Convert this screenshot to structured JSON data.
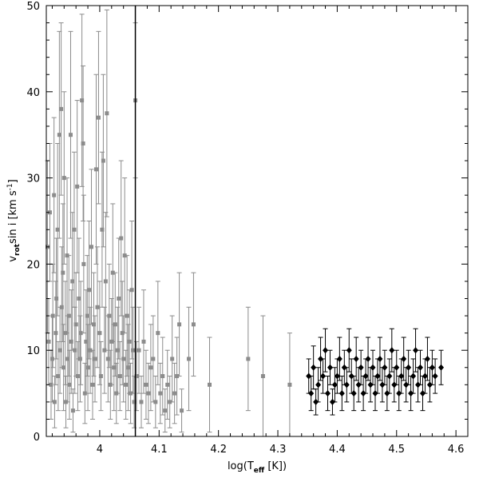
{
  "chart_data": {
    "type": "scatter",
    "title": "",
    "xlabel": "log(T_eff [K])",
    "ylabel": "v_rot sin i [km s^-1]",
    "xlabel_parts": {
      "pre": "log(T",
      "sub": "eff",
      "post": " [K])"
    },
    "ylabel_parts": {
      "pre": "v",
      "sub": "rot",
      "mid": "sin i [km s",
      "sup": "-1",
      "post": "]"
    },
    "xlim": [
      3.91,
      4.62
    ],
    "ylim": [
      0,
      50
    ],
    "xticks": [
      4.0,
      4.1,
      4.2,
      4.3,
      4.4,
      4.5,
      4.6
    ],
    "xtick_labels": [
      "4",
      "4.1",
      "4.2",
      "4.3",
      "4.4",
      "4.5",
      "4.6"
    ],
    "yticks": [
      0,
      10,
      20,
      30,
      40,
      50
    ],
    "ytick_labels": [
      "0",
      "10",
      "20",
      "30",
      "40",
      "50"
    ],
    "vline_x": 4.06,
    "grid": false,
    "colors": {
      "series_a": "#8c8c8c",
      "series_b": "#000000"
    },
    "series": [
      {
        "marker": "square",
        "color": "#8c8c8c",
        "points": [
          [
            3.912,
            22.0,
            10.0
          ],
          [
            3.914,
            11.0,
            5.0
          ],
          [
            3.916,
            26.0,
            8.0
          ],
          [
            3.918,
            6.0,
            4.0
          ],
          [
            3.92,
            9.0,
            5.0
          ],
          [
            3.921,
            14.0,
            6.0
          ],
          [
            3.923,
            28.0,
            9.0
          ],
          [
            3.924,
            4.0,
            3.0
          ],
          [
            3.926,
            12.0,
            6.0
          ],
          [
            3.927,
            16.0,
            7.0
          ],
          [
            3.929,
            24.0,
            10.0
          ],
          [
            3.93,
            7.0,
            4.0
          ],
          [
            3.932,
            35.0,
            12.0
          ],
          [
            3.933,
            10.0,
            5.0
          ],
          [
            3.935,
            38.0,
            10.0
          ],
          [
            3.936,
            15.0,
            7.0
          ],
          [
            3.938,
            19.0,
            8.0
          ],
          [
            3.939,
            8.0,
            5.0
          ],
          [
            3.94,
            30.0,
            10.0
          ],
          [
            3.942,
            12.0,
            6.0
          ],
          [
            3.943,
            4.0,
            3.0
          ],
          [
            3.945,
            21.0,
            9.0
          ],
          [
            3.946,
            9.0,
            5.0
          ],
          [
            3.948,
            14.0,
            7.0
          ],
          [
            3.949,
            6.0,
            4.0
          ],
          [
            3.951,
            35.0,
            12.0
          ],
          [
            3.952,
            11.0,
            6.0
          ],
          [
            3.954,
            18.0,
            8.0
          ],
          [
            3.955,
            3.0,
            2.5
          ],
          [
            3.957,
            24.0,
            9.0
          ],
          [
            3.958,
            10.0,
            5.0
          ],
          [
            3.96,
            13.0,
            6.0
          ],
          [
            3.962,
            29.0,
            10.0
          ],
          [
            3.963,
            7.0,
            4.0
          ],
          [
            3.965,
            16.0,
            7.0
          ],
          [
            3.967,
            9.0,
            5.0
          ],
          [
            3.968,
            12.0,
            6.0
          ],
          [
            3.97,
            39.0,
            10.0
          ],
          [
            3.972,
            34.0,
            9.0
          ],
          [
            3.973,
            20.0,
            8.0
          ],
          [
            3.975,
            5.0,
            3.5
          ],
          [
            3.977,
            11.0,
            6.0
          ],
          [
            3.979,
            14.0,
            7.0
          ],
          [
            3.98,
            8.0,
            5.0
          ],
          [
            3.982,
            17.0,
            8.0
          ],
          [
            3.984,
            10.0,
            5.0
          ],
          [
            3.986,
            22.0,
            9.0
          ],
          [
            3.988,
            6.0,
            4.0
          ],
          [
            3.99,
            13.0,
            6.0
          ],
          [
            3.992,
            9.0,
            5.0
          ],
          [
            3.994,
            31.0,
            11.0
          ],
          [
            3.996,
            15.0,
            7.0
          ],
          [
            3.998,
            37.0,
            10.0
          ],
          [
            4.0,
            12.0,
            6.0
          ],
          [
            4.002,
            7.0,
            4.0
          ],
          [
            4.004,
            24.0,
            9.0
          ],
          [
            4.006,
            32.0,
            10.0
          ],
          [
            4.008,
            10.0,
            5.0
          ],
          [
            4.01,
            18.0,
            8.0
          ],
          [
            4.012,
            37.5,
            12.0
          ],
          [
            4.014,
            9.0,
            5.0
          ],
          [
            4.016,
            14.0,
            6.0
          ],
          [
            4.018,
            6.0,
            4.0
          ],
          [
            4.02,
            11.0,
            5.0
          ],
          [
            4.022,
            19.0,
            8.0
          ],
          [
            4.024,
            8.0,
            5.0
          ],
          [
            4.026,
            13.0,
            6.0
          ],
          [
            4.028,
            5.0,
            3.5
          ],
          [
            4.03,
            10.0,
            5.0
          ],
          [
            4.032,
            16.0,
            7.0
          ],
          [
            4.034,
            7.0,
            4.0
          ],
          [
            4.036,
            23.0,
            9.0
          ],
          [
            4.038,
            12.0,
            6.0
          ],
          [
            4.04,
            9.0,
            5.0
          ],
          [
            4.042,
            21.0,
            9.0
          ],
          [
            4.044,
            6.0,
            4.0
          ],
          [
            4.046,
            14.0,
            7.0
          ],
          [
            4.048,
            8.0,
            5.0
          ],
          [
            4.05,
            11.0,
            6.0
          ],
          [
            4.052,
            5.0,
            3.5
          ],
          [
            4.054,
            17.0,
            8.0
          ],
          [
            4.056,
            10.0,
            5.0
          ],
          [
            4.058,
            4.0,
            3.0
          ],
          [
            4.06,
            39.0,
            9.0
          ],
          [
            4.062,
            7.0,
            4.0
          ],
          [
            4.066,
            10.0,
            5.0
          ],
          [
            4.07,
            4.0,
            3.0
          ],
          [
            4.074,
            11.0,
            6.0
          ],
          [
            4.078,
            6.0,
            4.0
          ],
          [
            4.082,
            5.0,
            3.5
          ],
          [
            4.086,
            8.0,
            5.0
          ],
          [
            4.09,
            9.0,
            5.0
          ],
          [
            4.094,
            4.0,
            3.0
          ],
          [
            4.098,
            12.0,
            6.0
          ],
          [
            4.102,
            5.0,
            3.5
          ],
          [
            4.106,
            7.0,
            4.5
          ],
          [
            4.11,
            3.0,
            2.5
          ],
          [
            4.114,
            6.0,
            4.0
          ],
          [
            4.118,
            4.0,
            3.0
          ],
          [
            4.122,
            9.0,
            5.0
          ],
          [
            4.126,
            5.0,
            3.5
          ],
          [
            4.13,
            7.0,
            4.5
          ],
          [
            4.134,
            13.0,
            6.0
          ],
          [
            4.138,
            3.0,
            2.5
          ],
          [
            4.15,
            9.0,
            6.0
          ],
          [
            4.158,
            13.0,
            6.0
          ],
          [
            4.185,
            6.0,
            5.5
          ],
          [
            4.25,
            9.0,
            6.0
          ],
          [
            4.275,
            7.0,
            7.0
          ],
          [
            4.32,
            6.0,
            6.0
          ]
        ]
      },
      {
        "marker": "diamond",
        "color": "#000000",
        "points": [
          [
            4.352,
            7.0,
            2.0
          ],
          [
            4.356,
            5.0,
            2.0
          ],
          [
            4.36,
            8.0,
            2.5
          ],
          [
            4.364,
            4.0,
            1.5
          ],
          [
            4.368,
            6.0,
            2.0
          ],
          [
            4.372,
            9.0,
            2.5
          ],
          [
            4.376,
            7.0,
            2.0
          ],
          [
            4.38,
            10.0,
            2.5
          ],
          [
            4.384,
            5.0,
            2.0
          ],
          [
            4.388,
            8.0,
            2.0
          ],
          [
            4.392,
            4.0,
            1.5
          ],
          [
            4.396,
            6.0,
            2.0
          ],
          [
            4.4,
            7.0,
            2.0
          ],
          [
            4.404,
            9.0,
            2.5
          ],
          [
            4.408,
            5.0,
            2.0
          ],
          [
            4.412,
            8.0,
            2.0
          ],
          [
            4.416,
            6.0,
            2.0
          ],
          [
            4.42,
            10.0,
            2.5
          ],
          [
            4.424,
            7.0,
            2.0
          ],
          [
            4.428,
            5.0,
            2.0
          ],
          [
            4.432,
            9.0,
            2.5
          ],
          [
            4.436,
            6.0,
            2.0
          ],
          [
            4.44,
            8.0,
            2.0
          ],
          [
            4.444,
            5.0,
            2.0
          ],
          [
            4.448,
            7.0,
            2.0
          ],
          [
            4.452,
            9.0,
            2.5
          ],
          [
            4.456,
            6.0,
            2.0
          ],
          [
            4.46,
            8.0,
            2.0
          ],
          [
            4.464,
            5.0,
            2.0
          ],
          [
            4.468,
            7.0,
            2.0
          ],
          [
            4.472,
            9.0,
            2.5
          ],
          [
            4.476,
            6.0,
            2.0
          ],
          [
            4.48,
            8.0,
            2.0
          ],
          [
            4.484,
            5.0,
            2.0
          ],
          [
            4.488,
            7.0,
            2.0
          ],
          [
            4.492,
            10.0,
            2.5
          ],
          [
            4.496,
            6.0,
            2.0
          ],
          [
            4.5,
            8.0,
            2.0
          ],
          [
            4.504,
            5.0,
            2.0
          ],
          [
            4.508,
            7.0,
            2.0
          ],
          [
            4.512,
            9.0,
            2.5
          ],
          [
            4.516,
            6.0,
            2.0
          ],
          [
            4.52,
            8.0,
            2.0
          ],
          [
            4.524,
            5.0,
            2.0
          ],
          [
            4.528,
            7.0,
            2.0
          ],
          [
            4.532,
            10.0,
            2.5
          ],
          [
            4.536,
            6.0,
            2.0
          ],
          [
            4.54,
            8.0,
            2.0
          ],
          [
            4.544,
            5.0,
            2.0
          ],
          [
            4.548,
            7.0,
            2.0
          ],
          [
            4.552,
            9.0,
            2.5
          ],
          [
            4.556,
            6.0,
            2.0
          ],
          [
            4.56,
            8.0,
            2.0
          ],
          [
            4.565,
            7.0,
            2.0
          ],
          [
            4.575,
            8.0,
            2.0
          ]
        ]
      }
    ]
  }
}
